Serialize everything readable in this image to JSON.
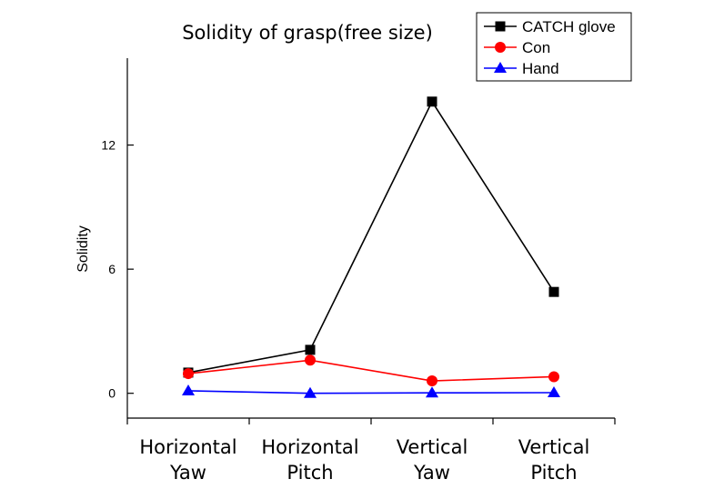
{
  "chart_data": {
    "type": "line",
    "title": "Solidity of grasp(free size)",
    "xlabel": "",
    "ylabel": "Solidity",
    "categories": [
      [
        "Horizontal",
        "Yaw"
      ],
      [
        "Horizontal",
        "Pitch"
      ],
      [
        "Vertical",
        "Yaw"
      ],
      [
        "Vertical",
        "Pitch"
      ]
    ],
    "ylim": [
      -1.2,
      16.2
    ],
    "yticks": [
      0,
      6,
      12
    ],
    "grid": false,
    "legend_position": "top-right",
    "series": [
      {
        "name": "CATCH glove",
        "values": [
          1.0,
          2.1,
          14.1,
          4.9
        ],
        "color": "#000000",
        "marker": "square"
      },
      {
        "name": "Con",
        "values": [
          0.95,
          1.6,
          0.6,
          0.8
        ],
        "color": "#ff0000",
        "marker": "circle"
      },
      {
        "name": "Hand",
        "values": [
          0.12,
          0.0,
          0.02,
          0.03
        ],
        "color": "#0000ff",
        "marker": "triangle"
      }
    ]
  }
}
